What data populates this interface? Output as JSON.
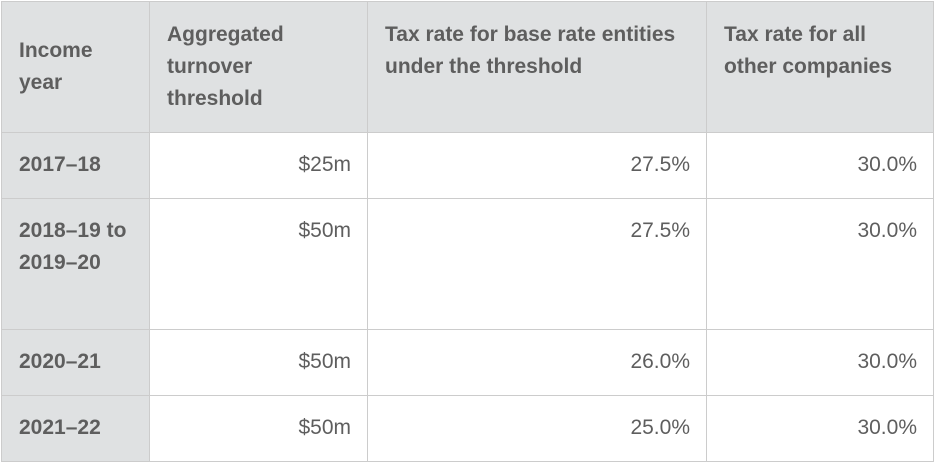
{
  "table": {
    "headers": [
      "Income year",
      "Aggregated turnover threshold",
      "Tax rate for base rate entities under the threshold",
      "Tax rate for all other companies"
    ],
    "rows": [
      [
        "2017–18",
        "$25m",
        "27.5%",
        "30.0%"
      ],
      [
        "2018–19 to 2019–20",
        "$50m",
        "27.5%",
        "30.0%"
      ],
      [
        "2020–21",
        "$50m",
        "26.0%",
        "30.0%"
      ],
      [
        "2021–22",
        "$50m",
        "25.0%",
        "30.0%"
      ]
    ]
  }
}
